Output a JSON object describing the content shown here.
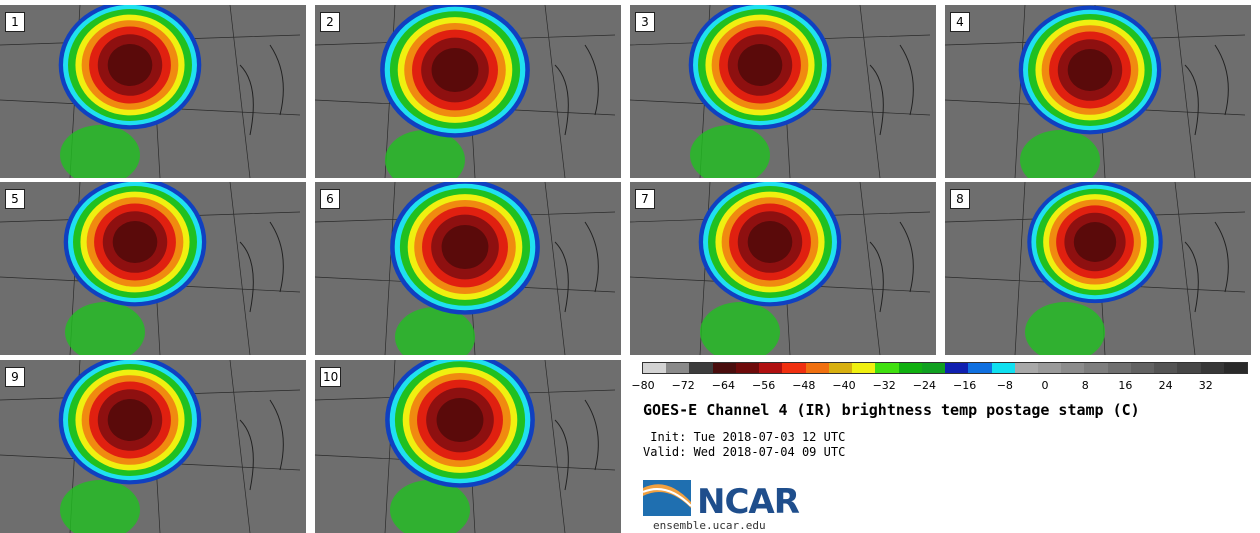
{
  "panels": [
    {
      "label": "1"
    },
    {
      "label": "2"
    },
    {
      "label": "3"
    },
    {
      "label": "4"
    },
    {
      "label": "5"
    },
    {
      "label": "6"
    },
    {
      "label": "7"
    },
    {
      "label": "8"
    },
    {
      "label": "9"
    },
    {
      "label": "10"
    }
  ],
  "legend": {
    "colors": [
      "#d3d3d3",
      "#8a8a8a",
      "#3c3c3c",
      "#4a0d0d",
      "#6e0a0a",
      "#b01010",
      "#f03010",
      "#f07010",
      "#d8b010",
      "#f0f010",
      "#40e010",
      "#10b010",
      "#10a020",
      "#1020b0",
      "#1070e0",
      "#10e0f0",
      "#a8a8a8",
      "#9a9a9a",
      "#8c8c8c",
      "#7e7e7e",
      "#707070",
      "#626262",
      "#545454",
      "#464646",
      "#383838",
      "#2a2a2a"
    ],
    "ticks": [
      "−80",
      "−72",
      "−64",
      "−56",
      "−48",
      "−40",
      "−32",
      "−24",
      "−16",
      "−8",
      "0",
      "8",
      "16",
      "24",
      "32"
    ]
  },
  "title": "GOES-E Channel 4 (IR) brightness temp postage stamp (C)",
  "init": " Init: Tue 2018-07-03 12 UTC",
  "valid": "Valid: Wed 2018-07-04 09 UTC",
  "logo": {
    "text": "NCAR",
    "site": "ensemble.ucar.edu"
  },
  "colors": {
    "deep": "#5a0a0a",
    "dark": "#8e1010",
    "red": "#e02010",
    "orange": "#f08a10",
    "yellow": "#f0f010",
    "green": "#20c020",
    "blue": "#1040c0",
    "cyan": "#20e0f0",
    "ground": "#6e6e6e"
  }
}
